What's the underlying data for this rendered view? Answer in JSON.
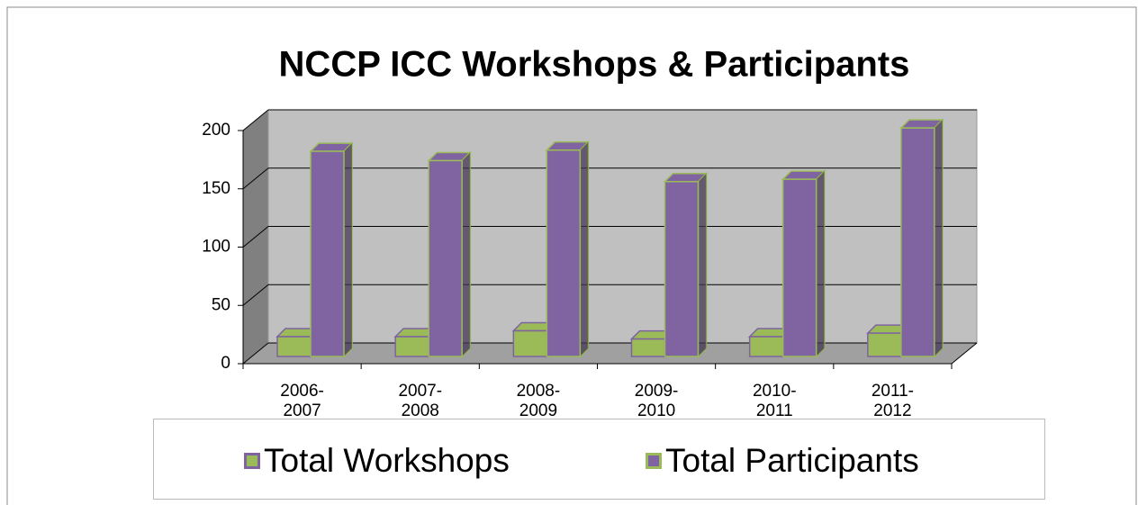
{
  "chart_data": {
    "type": "bar3d",
    "title": "NCCP ICC Workshops & Participants",
    "categories": [
      "2006-2007",
      "2007-2008",
      "2008-2009",
      "2009-2010",
      "2010-2011",
      "2011-2012"
    ],
    "series": [
      {
        "name": "Total Workshops",
        "color": "#9bbb59",
        "border": "#7f63a1",
        "values": [
          17,
          17,
          22,
          15,
          17,
          20
        ]
      },
      {
        "name": "Total Participants",
        "color": "#8064a2",
        "border": "#9bbb59",
        "values": [
          176,
          168,
          177,
          150,
          152,
          196
        ]
      }
    ],
    "ylim": [
      0,
      200
    ],
    "yticks": [
      0,
      50,
      100,
      150,
      200
    ],
    "grid": true,
    "legend": "bottom"
  }
}
